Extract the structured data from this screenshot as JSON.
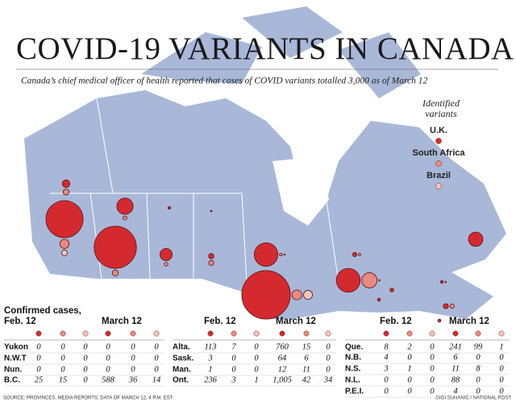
{
  "title": "COVID-19 VARIANTS IN CANADA",
  "subtitle": "Canada’s chief medical officer of health reported that cases of COVID variants totalled 3,000 as of March 12",
  "legend": {
    "title_lines": [
      "Identified",
      "variants"
    ],
    "items": [
      {
        "name": "U.K.",
        "color": "#d42a2f"
      },
      {
        "name": "South Africa",
        "color": "#e98a80"
      },
      {
        "name": "Brazil",
        "color": "#f4c6ba"
      }
    ]
  },
  "tables": [
    {
      "heading": "Confirmed cases,",
      "periods": [
        "Feb. 12",
        "March 12"
      ],
      "rows": [
        {
          "region": "Yukon",
          "feb": [
            0,
            0,
            0
          ],
          "march": [
            0,
            0,
            0
          ]
        },
        {
          "region": "N.W.T",
          "feb": [
            0,
            0,
            0
          ],
          "march": [
            0,
            0,
            0
          ]
        },
        {
          "region": "Nun.",
          "feb": [
            0,
            0,
            0
          ],
          "march": [
            0,
            0,
            0
          ]
        },
        {
          "region": "B.C.",
          "feb": [
            25,
            15,
            0
          ],
          "march": [
            588,
            36,
            14
          ]
        }
      ]
    },
    {
      "periods": [
        "Feb. 12",
        "March 12"
      ],
      "rows": [
        {
          "region": "Alta.",
          "feb": [
            113,
            7,
            0
          ],
          "march": [
            760,
            15,
            0
          ]
        },
        {
          "region": "Sask.",
          "feb": [
            3,
            0,
            0
          ],
          "march": [
            64,
            6,
            0
          ]
        },
        {
          "region": "Man.",
          "feb": [
            1,
            0,
            0
          ],
          "march": [
            12,
            11,
            0
          ]
        },
        {
          "region": "Ont.",
          "feb": [
            236,
            3,
            1
          ],
          "march": [
            {
              "value": 1005,
              "label": "1,005"
            },
            42,
            34
          ]
        }
      ]
    },
    {
      "periods": [
        "Feb. 12",
        "March 12"
      ],
      "rows": [
        {
          "region": "Que.",
          "feb": [
            8,
            2,
            0
          ],
          "march": [
            241,
            99,
            1
          ]
        },
        {
          "region": "N.B.",
          "feb": [
            4,
            0,
            0
          ],
          "march": [
            6,
            0,
            0
          ]
        },
        {
          "region": "N.S.",
          "feb": [
            3,
            1,
            0
          ],
          "march": [
            11,
            8,
            0
          ]
        },
        {
          "region": "N.L.",
          "feb": [
            0,
            0,
            0
          ],
          "march": [
            88,
            0,
            0
          ]
        },
        {
          "region": "P.E.I.",
          "feb": [
            0,
            0,
            0
          ],
          "march": [
            4,
            0,
            0
          ]
        }
      ]
    }
  ],
  "source": "SOURCE: PROVINCES, MEDIA REPORTS, DATA OF MARCH 12, 4 P.M. EST",
  "credit": "GIGI SUHANIC / NATIONAL POST"
}
